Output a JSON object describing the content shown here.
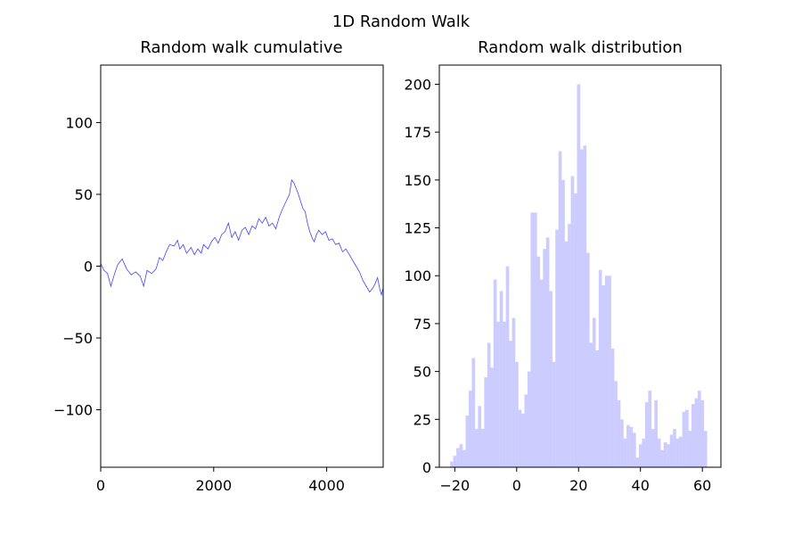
{
  "figure": {
    "suptitle": "1D Random Walk"
  },
  "chart_data": [
    {
      "type": "line",
      "title": "Random walk cumulative",
      "xlabel": "",
      "ylabel": "",
      "xlim": [
        0,
        5000
      ],
      "ylim": [
        -140,
        140
      ],
      "xticks": [
        0,
        2000,
        4000
      ],
      "yticks": [
        -100,
        -50,
        0,
        50,
        100
      ],
      "grid": false,
      "line_color": "#0000ff",
      "series": [
        {
          "x": [
            0,
            60,
            120,
            180,
            240,
            300,
            380,
            460,
            540,
            620,
            700,
            760,
            820,
            900,
            980,
            1040,
            1100,
            1160,
            1220,
            1300,
            1360,
            1400,
            1460,
            1520,
            1600,
            1660,
            1720,
            1780,
            1820,
            1900,
            1960,
            2020,
            2080,
            2140,
            2200,
            2260,
            2320,
            2380,
            2440,
            2500,
            2560,
            2620,
            2680,
            2740,
            2800,
            2860,
            2920,
            2980,
            3040,
            3100,
            3160,
            3220,
            3280,
            3340,
            3380,
            3420,
            3460,
            3500,
            3540,
            3580,
            3620,
            3660,
            3700,
            3740,
            3780,
            3820,
            3860,
            3920,
            3980,
            4040,
            4100,
            4160,
            4220,
            4280,
            4340,
            4400,
            4460,
            4520,
            4580,
            4640,
            4700,
            4760,
            4820,
            4860,
            4900,
            4940,
            4970,
            5000
          ],
          "y": [
            2,
            -3,
            -5,
            -14,
            -6,
            1,
            5,
            -2,
            -6,
            -4,
            -7,
            -14,
            -3,
            -5,
            -2,
            6,
            4,
            10,
            15,
            14,
            18,
            12,
            15,
            9,
            13,
            8,
            12,
            9,
            15,
            12,
            17,
            20,
            16,
            22,
            24,
            30,
            20,
            24,
            18,
            25,
            27,
            22,
            28,
            26,
            33,
            30,
            34,
            28,
            30,
            26,
            34,
            40,
            45,
            50,
            60,
            58,
            54,
            50,
            45,
            40,
            38,
            30,
            24,
            20,
            17,
            22,
            25,
            22,
            24,
            18,
            19,
            15,
            16,
            10,
            12,
            8,
            4,
            0,
            -4,
            -10,
            -14,
            -18,
            -15,
            -12,
            -8,
            -16,
            -20,
            -15
          ]
        }
      ]
    },
    {
      "type": "bar",
      "title": "Random walk distribution",
      "xlabel": "",
      "ylabel": "",
      "xlim": [
        -25,
        66
      ],
      "ylim": [
        0,
        210
      ],
      "xticks": [
        -20,
        0,
        20,
        40,
        60
      ],
      "yticks": [
        0,
        25,
        50,
        75,
        100,
        125,
        150,
        175,
        200
      ],
      "grid": false,
      "bar_color": "#ccccff",
      "bin_start": -21.5,
      "bin_width": 1,
      "values": [
        3,
        6,
        10,
        12,
        9,
        27,
        40,
        57,
        20,
        32,
        20,
        47,
        65,
        52,
        98,
        76,
        92,
        76,
        105,
        66,
        78,
        55,
        30,
        28,
        38,
        50,
        133,
        133,
        110,
        98,
        114,
        120,
        92,
        55,
        124,
        165,
        150,
        118,
        127,
        152,
        143,
        200,
        166,
        168,
        112,
        65,
        78,
        61,
        103,
        95,
        100,
        100,
        62,
        45,
        35,
        25,
        15,
        22,
        21,
        18,
        5,
        12,
        15,
        34,
        40,
        20,
        35,
        15,
        9,
        13,
        12,
        17,
        20,
        15,
        16,
        29,
        30,
        19,
        33,
        36,
        40,
        35,
        19
      ],
      "bins_note_hidden": ""
    }
  ]
}
